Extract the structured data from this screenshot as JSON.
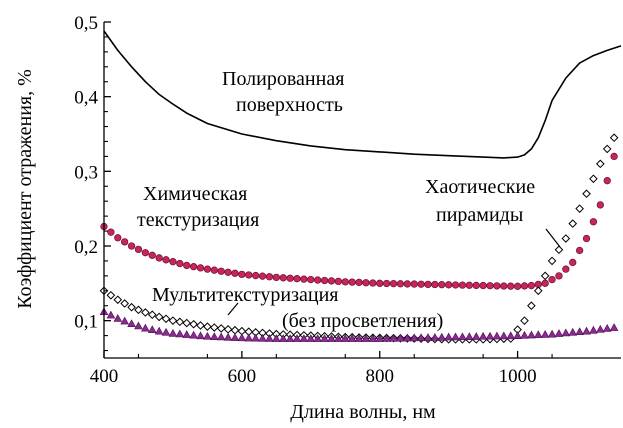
{
  "chart_data": {
    "type": "line",
    "xlabel": "Длина волны, нм",
    "ylabel": "Коэффициент отражения, %",
    "xlim": [
      400,
      1150
    ],
    "ylim": [
      0.05,
      0.5
    ],
    "xticks": [
      400,
      600,
      800,
      1000
    ],
    "xtick_labels": [
      "400",
      "600",
      "800",
      "1000"
    ],
    "yticks": [
      0.1,
      0.2,
      0.3,
      0.4,
      0.5
    ],
    "ytick_labels": [
      "0,1",
      "0,2",
      "0,3",
      "0,4",
      "0,5"
    ],
    "grid": false,
    "annotations": [
      {
        "lines": [
          "Полированная",
          "поверхность"
        ]
      },
      {
        "lines": [
          "Химическая",
          "текстуризация"
        ]
      },
      {
        "lines": [
          "Хаотические",
          "пирамиды"
        ]
      },
      {
        "lines": [
          "Мультитекстуризация"
        ]
      },
      {
        "lines": [
          "(без просветления)"
        ]
      }
    ],
    "series": [
      {
        "marker": "line",
        "color": "#000000",
        "x": [
          400,
          420,
          440,
          460,
          480,
          500,
          520,
          550,
          600,
          650,
          700,
          750,
          800,
          850,
          900,
          950,
          980,
          1000,
          1010,
          1020,
          1030,
          1040,
          1050,
          1070,
          1090,
          1110,
          1130,
          1150
        ],
        "y": [
          0.488,
          0.462,
          0.44,
          0.42,
          0.403,
          0.39,
          0.378,
          0.364,
          0.35,
          0.341,
          0.334,
          0.329,
          0.326,
          0.323,
          0.321,
          0.319,
          0.318,
          0.319,
          0.322,
          0.33,
          0.345,
          0.368,
          0.395,
          0.425,
          0.445,
          0.455,
          0.462,
          0.468
        ]
      },
      {
        "marker": "circle",
        "color": "#c8265a",
        "x": [
          400,
          420,
          440,
          460,
          480,
          500,
          520,
          550,
          600,
          650,
          700,
          750,
          800,
          850,
          900,
          950,
          1000,
          1020,
          1040,
          1060,
          1080,
          1100,
          1120,
          1140,
          1150
        ],
        "y": [
          0.226,
          0.211,
          0.2,
          0.191,
          0.184,
          0.179,
          0.174,
          0.169,
          0.162,
          0.158,
          0.155,
          0.152,
          0.15,
          0.149,
          0.148,
          0.147,
          0.146,
          0.147,
          0.15,
          0.16,
          0.178,
          0.21,
          0.255,
          0.32,
          0.375
        ]
      },
      {
        "marker": "diamond",
        "color": "#000000",
        "x": [
          400,
          420,
          440,
          460,
          480,
          500,
          550,
          600,
          650,
          700,
          750,
          800,
          850,
          900,
          950,
          990,
          1010,
          1030,
          1050,
          1070,
          1090,
          1110,
          1130,
          1150
        ],
        "y": [
          0.14,
          0.128,
          0.118,
          0.111,
          0.105,
          0.1,
          0.092,
          0.086,
          0.082,
          0.08,
          0.078,
          0.077,
          0.076,
          0.075,
          0.075,
          0.076,
          0.1,
          0.14,
          0.18,
          0.21,
          0.25,
          0.29,
          0.33,
          0.36
        ]
      },
      {
        "marker": "triangle",
        "color": "#8b2a8f",
        "x": [
          400,
          420,
          440,
          460,
          480,
          500,
          550,
          600,
          650,
          700,
          750,
          800,
          850,
          900,
          950,
          1000,
          1050,
          1100,
          1150
        ],
        "y": [
          0.112,
          0.103,
          0.096,
          0.09,
          0.086,
          0.083,
          0.079,
          0.077,
          0.076,
          0.076,
          0.076,
          0.076,
          0.077,
          0.078,
          0.079,
          0.08,
          0.082,
          0.086,
          0.092
        ]
      }
    ]
  }
}
